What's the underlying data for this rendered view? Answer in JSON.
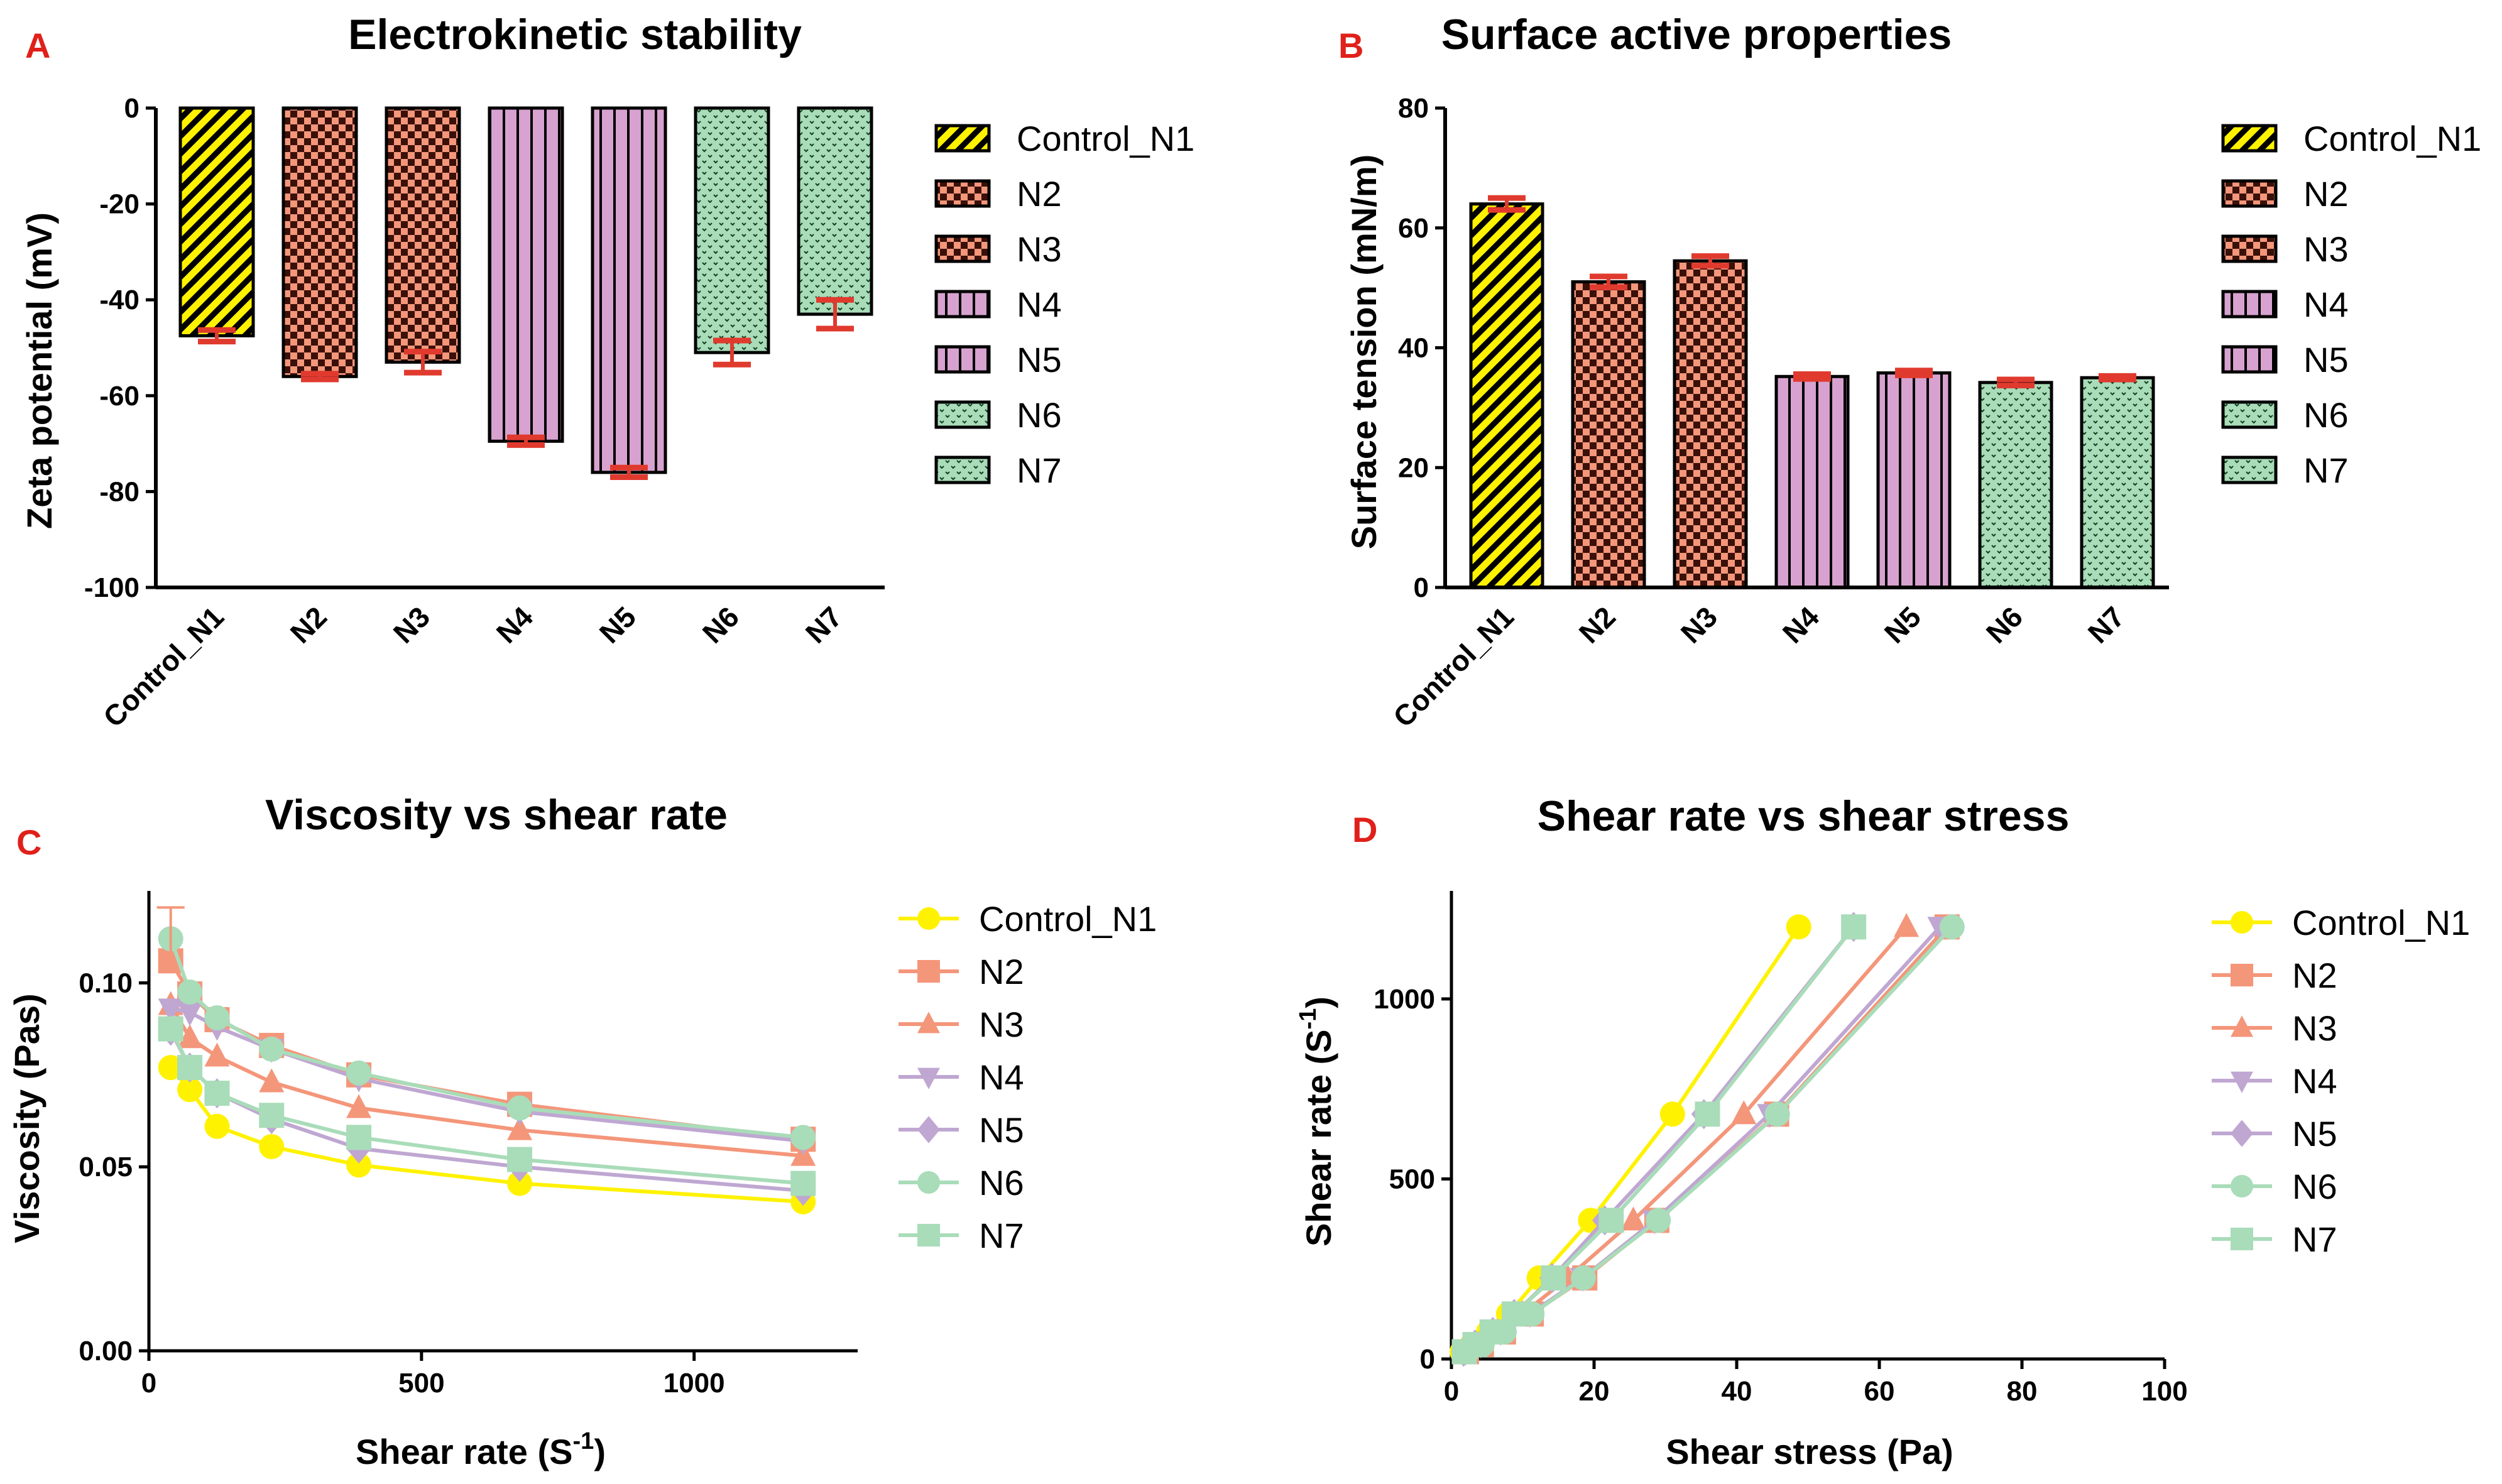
{
  "colors": {
    "yellow": "#FFF200",
    "salmon": "#F4967A",
    "pink": "#D7A2CF",
    "mint": "#A9DCB9",
    "lavender": "#BFA7D2",
    "darkgreen": "#123E1E",
    "error": "#E03A2F",
    "panel_label": "#E0201A"
  },
  "chart_data": [
    {
      "id": "A",
      "panel_label": "A",
      "type": "bar",
      "title": "Electrokinetic stability",
      "xlabel": "",
      "ylabel": "Zeta potential (mV)",
      "ylim": [
        -100,
        0
      ],
      "yticks": [
        0,
        -20,
        -40,
        -60,
        -80,
        -100
      ],
      "ytick_labels": [
        "0",
        "-20",
        "-40",
        "-60",
        "-80",
        "-100"
      ],
      "categories": [
        "Control_N1",
        "N2",
        "N3",
        "N4",
        "N5",
        "N6",
        "N7"
      ],
      "values": [
        -47.5,
        -56,
        -53,
        -69.5,
        -76,
        -51,
        -43
      ],
      "errors": [
        1.2,
        0.6,
        2.2,
        0.8,
        1.0,
        2.5,
        3.0
      ],
      "patterns": [
        "diag",
        "check",
        "check",
        "vline",
        "vline",
        "dots",
        "dots"
      ],
      "legend": [
        "Control_N1",
        "N2",
        "N3",
        "N4",
        "N5",
        "N6",
        "N7"
      ]
    },
    {
      "id": "B",
      "panel_label": "B",
      "type": "bar",
      "title": "Surface active properties",
      "xlabel": "",
      "ylabel": "Surface tension (mN/m)",
      "ylim": [
        0,
        80
      ],
      "yticks": [
        0,
        20,
        40,
        60,
        80
      ],
      "ytick_labels": [
        "0",
        "20",
        "40",
        "60",
        "80"
      ],
      "categories": [
        "Control_N1",
        "N2",
        "N3",
        "N4",
        "N5",
        "N6",
        "N7"
      ],
      "values": [
        64,
        51,
        54.5,
        35.2,
        35.8,
        34.2,
        35
      ],
      "errors": [
        1.0,
        0.9,
        0.8,
        0.4,
        0.4,
        0.5,
        0.3
      ],
      "patterns": [
        "diag",
        "check",
        "check",
        "vline",
        "vline",
        "dots",
        "dots"
      ],
      "legend": [
        "Control_N1",
        "N2",
        "N3",
        "N4",
        "N5",
        "N6",
        "N7"
      ]
    },
    {
      "id": "C",
      "panel_label": "C",
      "type": "line",
      "title": "Viscosity vs shear rate",
      "xlabel": "Shear rate (S",
      "xlabel_sup": "-1",
      "xlabel_tail": ")",
      "ylabel": "Viscosity (Pas)",
      "xlim": [
        0,
        1300
      ],
      "ylim": [
        0,
        0.125
      ],
      "xticks": [
        0,
        500,
        1000
      ],
      "xtick_labels": [
        "0",
        "500",
        "1000"
      ],
      "yticks": [
        0,
        0.05,
        0.1
      ],
      "ytick_labels": [
        "0.00",
        "0.05",
        "0.10"
      ],
      "x": [
        40,
        75,
        125,
        225,
        385,
        680,
        1200
      ],
      "series": [
        {
          "name": "Control_N1",
          "color": "#FFF200",
          "marker": "circle",
          "values": [
            0.077,
            0.071,
            0.061,
            0.0555,
            0.0505,
            0.0455,
            0.0405
          ]
        },
        {
          "name": "N2",
          "color": "#F4967A",
          "marker": "square",
          "values": [
            0.106,
            0.097,
            0.09,
            0.083,
            0.075,
            0.067,
            0.0575
          ]
        },
        {
          "name": "N3",
          "color": "#F4967A",
          "marker": "triangle",
          "values": [
            0.094,
            0.085,
            0.08,
            0.073,
            0.066,
            0.06,
            0.053
          ]
        },
        {
          "name": "N4",
          "color": "#BFA7D2",
          "marker": "triangle-down",
          "values": [
            0.093,
            0.092,
            0.088,
            0.082,
            0.074,
            0.065,
            0.057
          ]
        },
        {
          "name": "N5",
          "color": "#BFA7D2",
          "marker": "diamond",
          "values": [
            0.087,
            0.077,
            0.07,
            0.063,
            0.055,
            0.05,
            0.0435
          ]
        },
        {
          "name": "N6",
          "color": "#A9DCB9",
          "marker": "circle",
          "values": [
            0.112,
            0.0975,
            0.0905,
            0.082,
            0.0755,
            0.066,
            0.058
          ]
        },
        {
          "name": "N7",
          "color": "#A9DCB9",
          "marker": "square",
          "values": [
            0.0875,
            0.077,
            0.07,
            0.064,
            0.058,
            0.052,
            0.0455
          ]
        }
      ],
      "error_bar": {
        "series": "N2",
        "x": 40,
        "upper": 0.1205
      }
    },
    {
      "id": "D",
      "panel_label": "D",
      "type": "line",
      "title": "Shear rate vs shear stress",
      "xlabel": "Shear stress (Pa)",
      "ylabel": "Shear rate (S",
      "ylabel_sup": "-1",
      "ylabel_tail": ")",
      "xlim": [
        0,
        100
      ],
      "ylim": [
        0,
        1300
      ],
      "xticks": [
        0,
        20,
        40,
        60,
        80,
        100
      ],
      "xtick_labels": [
        "0",
        "20",
        "40",
        "60",
        "80",
        "100"
      ],
      "yticks": [
        0,
        500,
        1000
      ],
      "ytick_labels": [
        "0",
        "500",
        "1000"
      ],
      "y": [
        20,
        40,
        75,
        125,
        225,
        385,
        680,
        1200
      ],
      "series": [
        {
          "name": "Control_N1",
          "color": "#FFF200",
          "marker": "circle",
          "values": [
            1.5,
            2.9,
            5.2,
            8.0,
            12.3,
            19.5,
            31.0,
            48.7
          ]
        },
        {
          "name": "N2",
          "color": "#F4967A",
          "marker": "square",
          "values": [
            2.1,
            4.2,
            7.3,
            11.2,
            18.7,
            28.8,
            45.6,
            69.5
          ]
        },
        {
          "name": "N3",
          "color": "#F4967A",
          "marker": "triangle",
          "values": [
            1.9,
            3.8,
            6.4,
            10.0,
            16.3,
            25.5,
            41.0,
            63.8
          ]
        },
        {
          "name": "N4",
          "color": "#BFA7D2",
          "marker": "triangle-down",
          "values": [
            2.0,
            4.1,
            6.9,
            11.0,
            18.4,
            28.5,
            44.6,
            68.5
          ]
        },
        {
          "name": "N5",
          "color": "#BFA7D2",
          "marker": "diamond",
          "values": [
            1.7,
            3.3,
            5.8,
            8.8,
            14.1,
            21.5,
            35.4,
            56.4
          ]
        },
        {
          "name": "N6",
          "color": "#A9DCB9",
          "marker": "circle",
          "values": [
            2.2,
            4.3,
            7.4,
            11.3,
            18.5,
            29.0,
            45.7,
            70.2
          ]
        },
        {
          "name": "N7",
          "color": "#A9DCB9",
          "marker": "square",
          "values": [
            1.8,
            3.3,
            5.7,
            8.8,
            14.3,
            22.4,
            35.9,
            56.4
          ]
        }
      ]
    }
  ]
}
